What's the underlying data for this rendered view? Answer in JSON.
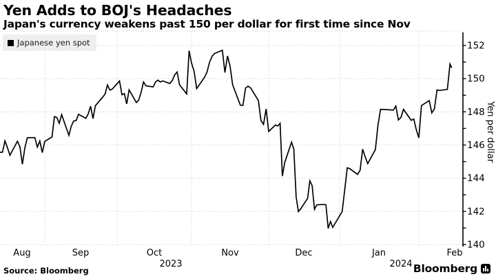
{
  "header": {
    "title": "Yen Adds to BOJ's Headaches",
    "subtitle": "Japan's currency weakens past 150 per dollar for first time since Nov"
  },
  "legend": {
    "swatch_icon": "black-square-series-marker",
    "label": "Japanese yen spot"
  },
  "axis": {
    "y_title": "Yen per dollar",
    "y_tick_labels": [
      152,
      150,
      148,
      146,
      144,
      142,
      140
    ],
    "months": [
      "Aug",
      "Sep",
      "Oct",
      "Nov",
      "Dec",
      "Jan",
      "Feb"
    ],
    "years": [
      "2023",
      "2024"
    ]
  },
  "footer": {
    "source": "Source: Bloomberg",
    "brand": "Bloomberg",
    "brand_icon": "bloomberg-terminal-icon"
  },
  "colors": {
    "line": "#000000",
    "grid": "#c2c2c2",
    "axis": "#000000",
    "text": "#000000",
    "legend_bg": "#efefef"
  },
  "chart_data": {
    "type": "line",
    "title": "Yen Adds to BOJ's Headaches",
    "subtitle": "Japan's currency weakens past 150 per dollar for first time since Nov",
    "ylabel": "Yen per dollar",
    "ylim": [
      140,
      152.9
    ],
    "y_major_ticks": [
      140,
      142,
      144,
      146,
      148,
      150,
      152
    ],
    "y_minor_tick_step": 1,
    "x_range": [
      "2023-08-14",
      "2024-02-18"
    ],
    "x_month_gridlines": [
      "2023-09-01",
      "2023-10-01",
      "2023-11-01",
      "2023-12-01",
      "2024-01-01",
      "2024-02-01"
    ],
    "grid": "dotted",
    "legend_position": "top-left",
    "series": [
      {
        "name": "Japanese yen spot",
        "color": "#000000",
        "points": [
          [
            "2023-08-14",
            145.56
          ],
          [
            "2023-08-15",
            145.57
          ],
          [
            "2023-08-16",
            146.25
          ],
          [
            "2023-08-17",
            145.84
          ],
          [
            "2023-08-18",
            145.38
          ],
          [
            "2023-08-21",
            146.23
          ],
          [
            "2023-08-22",
            145.89
          ],
          [
            "2023-08-23",
            144.84
          ],
          [
            "2023-08-24",
            145.83
          ],
          [
            "2023-08-25",
            146.44
          ],
          [
            "2023-08-28",
            146.45
          ],
          [
            "2023-08-29",
            145.87
          ],
          [
            "2023-08-30",
            146.24
          ],
          [
            "2023-08-31",
            145.54
          ],
          [
            "2023-09-01",
            146.22
          ],
          [
            "2023-09-04",
            146.48
          ],
          [
            "2023-09-05",
            147.71
          ],
          [
            "2023-09-06",
            147.66
          ],
          [
            "2023-09-07",
            147.31
          ],
          [
            "2023-09-08",
            147.83
          ],
          [
            "2023-09-11",
            146.58
          ],
          [
            "2023-09-12",
            147.14
          ],
          [
            "2023-09-13",
            147.45
          ],
          [
            "2023-09-14",
            147.47
          ],
          [
            "2023-09-15",
            147.85
          ],
          [
            "2023-09-18",
            147.61
          ],
          [
            "2023-09-19",
            147.87
          ],
          [
            "2023-09-20",
            148.34
          ],
          [
            "2023-09-21",
            147.59
          ],
          [
            "2023-09-22",
            148.37
          ],
          [
            "2023-09-25",
            148.88
          ],
          [
            "2023-09-26",
            149.07
          ],
          [
            "2023-09-27",
            149.62
          ],
          [
            "2023-09-28",
            149.31
          ],
          [
            "2023-09-29",
            149.37
          ],
          [
            "2023-10-02",
            149.86
          ],
          [
            "2023-10-03",
            149.03
          ],
          [
            "2023-10-04",
            149.1
          ],
          [
            "2023-10-05",
            148.48
          ],
          [
            "2023-10-06",
            149.32
          ],
          [
            "2023-10-09",
            148.56
          ],
          [
            "2023-10-10",
            148.71
          ],
          [
            "2023-10-11",
            149.17
          ],
          [
            "2023-10-12",
            149.8
          ],
          [
            "2023-10-13",
            149.57
          ],
          [
            "2023-10-16",
            149.5
          ],
          [
            "2023-10-17",
            149.8
          ],
          [
            "2023-10-18",
            149.91
          ],
          [
            "2023-10-19",
            149.8
          ],
          [
            "2023-10-20",
            149.86
          ],
          [
            "2023-10-23",
            149.71
          ],
          [
            "2023-10-24",
            149.89
          ],
          [
            "2023-10-25",
            150.23
          ],
          [
            "2023-10-26",
            150.4
          ],
          [
            "2023-10-27",
            149.63
          ],
          [
            "2023-10-30",
            149.08
          ],
          [
            "2023-10-31",
            151.68
          ],
          [
            "2023-11-01",
            150.95
          ],
          [
            "2023-11-02",
            150.45
          ],
          [
            "2023-11-03",
            149.4
          ],
          [
            "2023-11-06",
            150.07
          ],
          [
            "2023-11-07",
            150.38
          ],
          [
            "2023-11-08",
            150.98
          ],
          [
            "2023-11-09",
            151.35
          ],
          [
            "2023-11-10",
            151.52
          ],
          [
            "2023-11-13",
            151.71
          ],
          [
            "2023-11-14",
            150.37
          ],
          [
            "2023-11-15",
            151.37
          ],
          [
            "2023-11-16",
            150.74
          ],
          [
            "2023-11-17",
            149.63
          ],
          [
            "2023-11-20",
            148.4
          ],
          [
            "2023-11-21",
            148.39
          ],
          [
            "2023-11-22",
            149.43
          ],
          [
            "2023-11-23",
            149.55
          ],
          [
            "2023-11-24",
            149.44
          ],
          [
            "2023-11-27",
            148.68
          ],
          [
            "2023-11-28",
            147.48
          ],
          [
            "2023-11-29",
            147.24
          ],
          [
            "2023-11-30",
            148.17
          ],
          [
            "2023-12-01",
            146.82
          ],
          [
            "2023-12-04",
            147.21
          ],
          [
            "2023-12-05",
            147.14
          ],
          [
            "2023-12-06",
            147.31
          ],
          [
            "2023-12-07",
            144.13
          ],
          [
            "2023-12-08",
            144.95
          ],
          [
            "2023-12-11",
            146.17
          ],
          [
            "2023-12-12",
            145.76
          ],
          [
            "2023-12-13",
            142.86
          ],
          [
            "2023-12-14",
            141.99
          ],
          [
            "2023-12-15",
            142.15
          ],
          [
            "2023-12-18",
            142.78
          ],
          [
            "2023-12-19",
            143.84
          ],
          [
            "2023-12-20",
            143.56
          ],
          [
            "2023-12-21",
            142.12
          ],
          [
            "2023-12-22",
            142.39
          ],
          [
            "2023-12-25",
            142.42
          ],
          [
            "2023-12-26",
            142.4
          ],
          [
            "2023-12-27",
            140.97
          ],
          [
            "2023-12-28",
            141.39
          ],
          [
            "2023-12-29",
            141.04
          ],
          [
            "2024-01-02",
            141.99
          ],
          [
            "2024-01-03",
            143.3
          ],
          [
            "2024-01-04",
            144.63
          ],
          [
            "2024-01-05",
            144.57
          ],
          [
            "2024-01-08",
            144.23
          ],
          [
            "2024-01-09",
            144.47
          ],
          [
            "2024-01-10",
            145.75
          ],
          [
            "2024-01-11",
            145.29
          ],
          [
            "2024-01-12",
            144.88
          ],
          [
            "2024-01-15",
            145.72
          ],
          [
            "2024-01-16",
            147.18
          ],
          [
            "2024-01-17",
            148.15
          ],
          [
            "2024-01-18",
            148.14
          ],
          [
            "2024-01-19",
            148.14
          ],
          [
            "2024-01-22",
            148.1
          ],
          [
            "2024-01-23",
            148.35
          ],
          [
            "2024-01-24",
            147.51
          ],
          [
            "2024-01-25",
            147.66
          ],
          [
            "2024-01-26",
            148.15
          ],
          [
            "2024-01-29",
            147.49
          ],
          [
            "2024-01-30",
            147.57
          ],
          [
            "2024-01-31",
            146.92
          ],
          [
            "2024-02-01",
            146.43
          ],
          [
            "2024-02-02",
            148.38
          ],
          [
            "2024-02-05",
            148.68
          ],
          [
            "2024-02-06",
            147.94
          ],
          [
            "2024-02-07",
            148.18
          ],
          [
            "2024-02-08",
            149.32
          ],
          [
            "2024-02-09",
            149.29
          ],
          [
            "2024-02-12",
            149.35
          ],
          [
            "2024-02-13",
            150.88
          ],
          [
            "2024-02-13T16:00",
            150.65
          ]
        ]
      }
    ]
  }
}
